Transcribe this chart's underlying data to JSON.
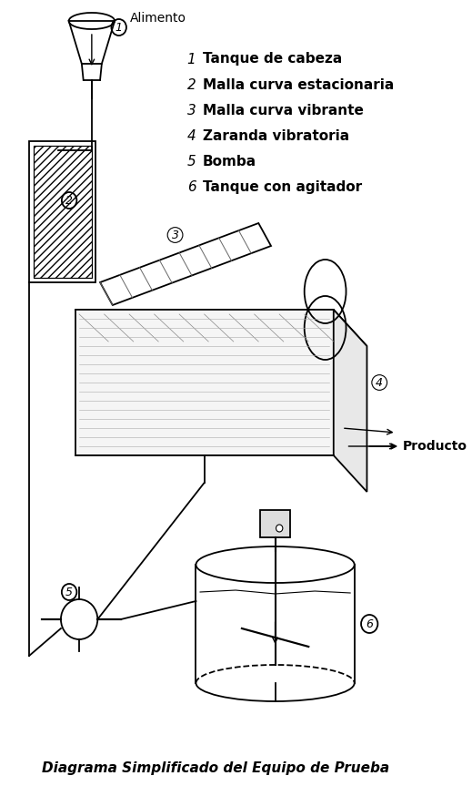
{
  "title": "Diagrama Simplificado del Equipo de Prueba",
  "background_color": "#ffffff",
  "legend_items": [
    {
      "number": "1",
      "label": "Tanque de cabeza"
    },
    {
      "number": "2",
      "label": "Malla curva estacionaria"
    },
    {
      "number": "3",
      "label": "Malla curva vibrante"
    },
    {
      "number": "4",
      "label": "Zaranda vibratoria"
    },
    {
      "number": "5",
      "label": "Bomba"
    },
    {
      "number": "6",
      "label": "Tanque con agitador"
    }
  ],
  "label_alimento": "Alimento",
  "label_producto": "Producto",
  "text_color": "#000000",
  "title_fontsize": 11,
  "legend_number_fontsize": 11,
  "legend_text_fontsize": 11
}
